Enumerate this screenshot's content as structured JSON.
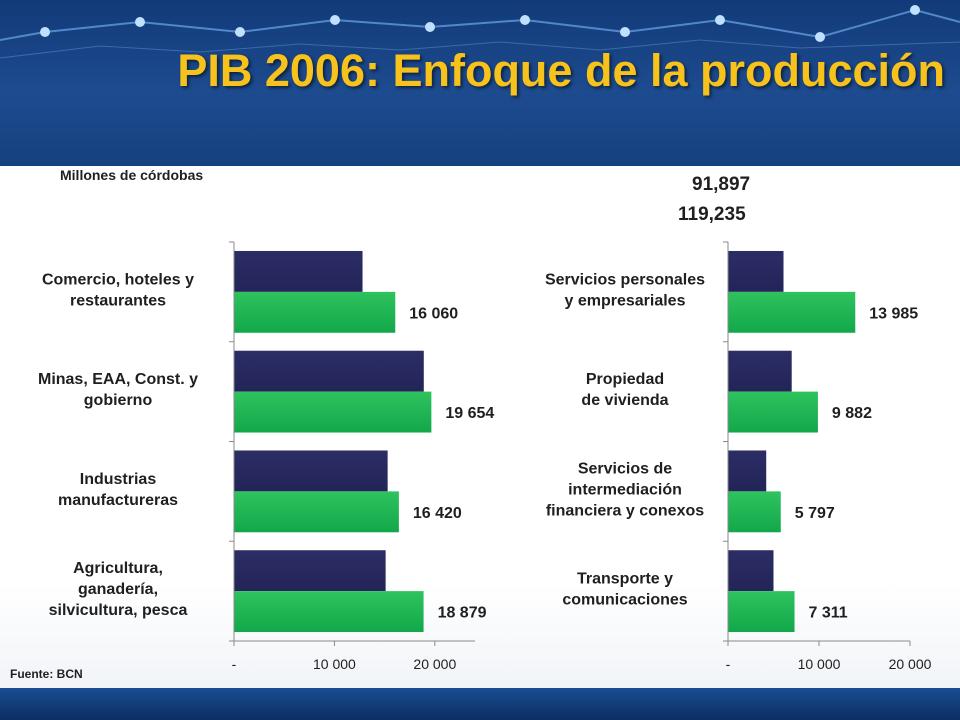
{
  "slide": {
    "title": "PIB 2006: Enfoque de la producción",
    "unit_label": "Millones de córdobas",
    "total_a": "91,897",
    "total_b": "119,235",
    "source": "Fuente: BCN"
  },
  "colors": {
    "series_dark": "#232457",
    "series_green": "#12a84a",
    "title": "#f7c21b"
  },
  "chart_data": [
    {
      "type": "bar",
      "orientation": "horizontal",
      "categories": [
        "Comercio, hoteles y restaurantes",
        "Minas, EAA, Const. y gobierno",
        "Industrias manufactureras",
        "Agricultura, ganadería, silvicultura, pesca"
      ],
      "category_lines": [
        [
          "Comercio, hoteles y",
          "restaurantes"
        ],
        [
          "Minas, EAA, Const. y",
          "gobierno"
        ],
        [
          "Industrias",
          "manufactureras"
        ],
        [
          "Agricultura,",
          "ganadería,",
          "silvicultura, pesca"
        ]
      ],
      "series": [
        {
          "values": [
            12800,
            18900,
            15300,
            15100
          ]
        },
        {
          "values": [
            16060,
            19654,
            16420,
            18879
          ]
        }
      ],
      "data_labels": [
        "16 060",
        "19 654",
        "16 420",
        "18 879"
      ],
      "xlim": [
        0,
        24000
      ],
      "xticks": [
        0,
        10000,
        20000
      ],
      "xtick_labels": [
        "-",
        "10 000",
        "20 000"
      ],
      "grid": false
    },
    {
      "type": "bar",
      "orientation": "horizontal",
      "categories": [
        "Servicios personales y empresariales",
        "Propiedad de vivienda",
        "Servicios de intermediación financiera y conexos",
        "Transporte y comunicaciones"
      ],
      "category_lines": [
        [
          "Servicios personales",
          "y empresariales"
        ],
        [
          "Propiedad",
          "de vivienda"
        ],
        [
          "Servicios de",
          "intermediación",
          "financiera y conexos"
        ],
        [
          "Transporte y",
          "comunicaciones"
        ]
      ],
      "series": [
        {
          "values": [
            6100,
            7000,
            4200,
            5000
          ]
        },
        {
          "values": [
            13985,
            9882,
            5797,
            7311
          ]
        }
      ],
      "data_labels": [
        "13 985",
        "9 882",
        "5 797",
        "7 311"
      ],
      "xlim": [
        0,
        20000
      ],
      "xticks": [
        0,
        10000,
        20000
      ],
      "xtick_labels": [
        "-",
        "10 000",
        "20 000"
      ],
      "grid": false
    }
  ]
}
